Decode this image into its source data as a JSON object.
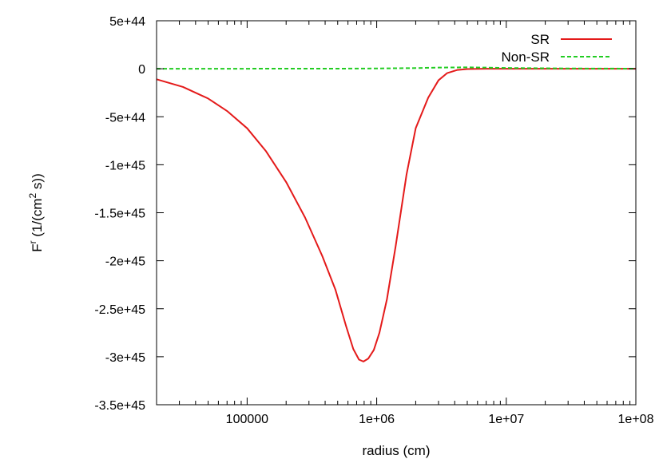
{
  "chart_data": {
    "type": "line",
    "xlabel": "radius (cm)",
    "ylabel_main": "F",
    "ylabel_sup1": "r",
    "ylabel_mid": " (1/(cm",
    "ylabel_sup2": "2",
    "ylabel_end": " s))",
    "x_scale": "log",
    "xlim": [
      20000,
      100000000
    ],
    "ylim": [
      -3.5e+45,
      5e+44
    ],
    "x_ticks": [
      {
        "value": 100000,
        "label": "100000"
      },
      {
        "value": 1000000,
        "label": "1e+06"
      },
      {
        "value": 10000000,
        "label": "1e+07"
      },
      {
        "value": 100000000,
        "label": "1e+08"
      }
    ],
    "y_ticks": [
      {
        "value": 5e+44,
        "label": "5e+44"
      },
      {
        "value": 0,
        "label": "0"
      },
      {
        "value": -5e+44,
        "label": "-5e+44"
      },
      {
        "value": -1e+45,
        "label": "-1e+45"
      },
      {
        "value": -1.5e+45,
        "label": "-1.5e+45"
      },
      {
        "value": -2e+45,
        "label": "-2e+45"
      },
      {
        "value": -2.5e+45,
        "label": "-2.5e+45"
      },
      {
        "value": -3e+45,
        "label": "-3e+45"
      },
      {
        "value": -3.5e+45,
        "label": "-3.5e+45"
      }
    ],
    "grid": false,
    "legend_position": "top-right",
    "series": [
      {
        "name": "SR",
        "color": "#e41a1a",
        "dash": "solid",
        "points": [
          [
            20000,
            -1.1e+44
          ],
          [
            32000,
            -1.9e+44
          ],
          [
            50000,
            -3.1e+44
          ],
          [
            70000,
            -4.4e+44
          ],
          [
            100000,
            -6.2e+44
          ],
          [
            140000,
            -8.6e+44
          ],
          [
            200000,
            -1.18e+45
          ],
          [
            280000,
            -1.55e+45
          ],
          [
            380000,
            -1.95e+45
          ],
          [
            480000,
            -2.3e+45
          ],
          [
            580000,
            -2.68e+45
          ],
          [
            660000,
            -2.92e+45
          ],
          [
            730000,
            -3.03e+45
          ],
          [
            790000,
            -3.05e+45
          ],
          [
            860000,
            -3.02e+45
          ],
          [
            950000,
            -2.93e+45
          ],
          [
            1050000,
            -2.75e+45
          ],
          [
            1200000,
            -2.4e+45
          ],
          [
            1400000,
            -1.85e+45
          ],
          [
            1700000,
            -1.1e+45
          ],
          [
            2000000,
            -6.2e+44
          ],
          [
            2500000,
            -3e+44
          ],
          [
            3000000,
            -1.2e+44
          ],
          [
            3500000,
            -4.5e+43
          ],
          [
            4200000,
            -1.2e+43
          ],
          [
            5000000,
            -3e+42
          ],
          [
            7000000,
            0
          ],
          [
            10000000,
            0
          ],
          [
            100000000,
            0
          ]
        ]
      },
      {
        "name": "Non-SR",
        "color": "#22cc22",
        "dash": "dashed",
        "points": [
          [
            20000,
            0
          ],
          [
            500000,
            1e+42
          ],
          [
            1000000,
            3e+42
          ],
          [
            2000000,
            7e+42
          ],
          [
            3000000,
            1.2e+43
          ],
          [
            5000000,
            1.5e+43
          ],
          [
            7000000,
            1.2e+43
          ],
          [
            10000000,
            8e+42
          ],
          [
            30000000,
            3e+42
          ],
          [
            100000000,
            1e+42
          ]
        ]
      }
    ]
  }
}
